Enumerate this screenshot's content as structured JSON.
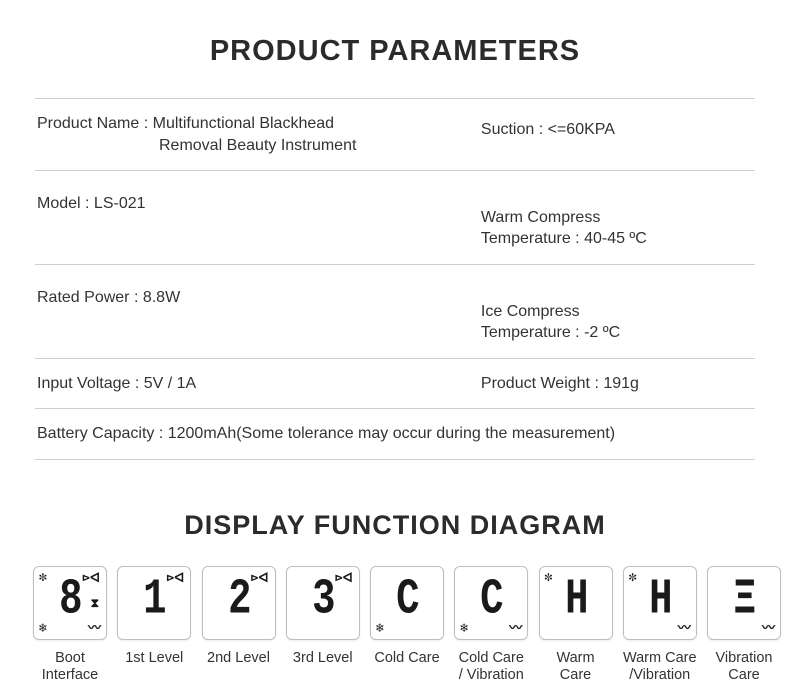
{
  "titles": {
    "params": "PRODUCT PARAMETERS",
    "display": "DISPLAY FUNCTION DIAGRAM"
  },
  "labels": {
    "product_name": "Product Name : ",
    "model": "Model : ",
    "rated_power": "Rated Power : ",
    "input_voltage": "Input Voltage : ",
    "battery": "Battery Capacity : ",
    "suction": "Suction :  ",
    "warm_compress": "Warm Compress\nTemperature : ",
    "ice_compress": "Ice Compress\nTemperature : ",
    "weight": "Product Weight : "
  },
  "values": {
    "product_name_line1": "Multifunctional Blackhead",
    "product_name_line2": "Removal Beauty Instrument",
    "model": "LS-021",
    "rated_power": "8.8W",
    "input_voltage": "5V / 1A",
    "battery": "1200mAh(Some tolerance may occur during the measurement)",
    "suction": "<=60KPA",
    "warm_compress": "40-45 ºC",
    "ice_compress": "-2 ºC",
    "weight": "191g"
  },
  "tiles": [
    {
      "char": "8",
      "caption": "Boot\nInterface",
      "sun": true,
      "nozzle": true,
      "bottle": true,
      "snow": true,
      "vibe": true
    },
    {
      "char": "1",
      "caption": "1st Level",
      "sun": false,
      "nozzle": true,
      "bottle": false,
      "snow": false,
      "vibe": false
    },
    {
      "char": "2",
      "caption": "2nd Level",
      "sun": false,
      "nozzle": true,
      "bottle": false,
      "snow": false,
      "vibe": false
    },
    {
      "char": "3",
      "caption": "3rd Level",
      "sun": false,
      "nozzle": true,
      "bottle": false,
      "snow": false,
      "vibe": false
    },
    {
      "char": "C",
      "caption": "Cold Care",
      "sun": false,
      "nozzle": false,
      "bottle": false,
      "snow": true,
      "vibe": false
    },
    {
      "char": "C",
      "caption": "Cold Care\n/ Vibration",
      "sun": false,
      "nozzle": false,
      "bottle": false,
      "snow": true,
      "vibe": true
    },
    {
      "char": "H",
      "caption": "Warm\nCare",
      "sun": true,
      "nozzle": false,
      "bottle": false,
      "snow": false,
      "vibe": false
    },
    {
      "char": "H",
      "caption": "Warm Care\n/Vibration",
      "sun": true,
      "nozzle": false,
      "bottle": false,
      "snow": false,
      "vibe": true
    },
    {
      "char": "Ξ",
      "caption": "Vibration\nCare",
      "sun": false,
      "nozzle": false,
      "bottle": false,
      "snow": false,
      "vibe": true
    }
  ],
  "icons": {
    "sun": "✼",
    "nozzle": "⊳ᐊ",
    "bottle": "⧗",
    "snow": "❄",
    "vibe": "〰"
  },
  "style": {
    "text_color": "#2b2b2b",
    "border_color": "#cfcfcf",
    "tile_border": "#bfbfbf",
    "background": "#ffffff"
  }
}
